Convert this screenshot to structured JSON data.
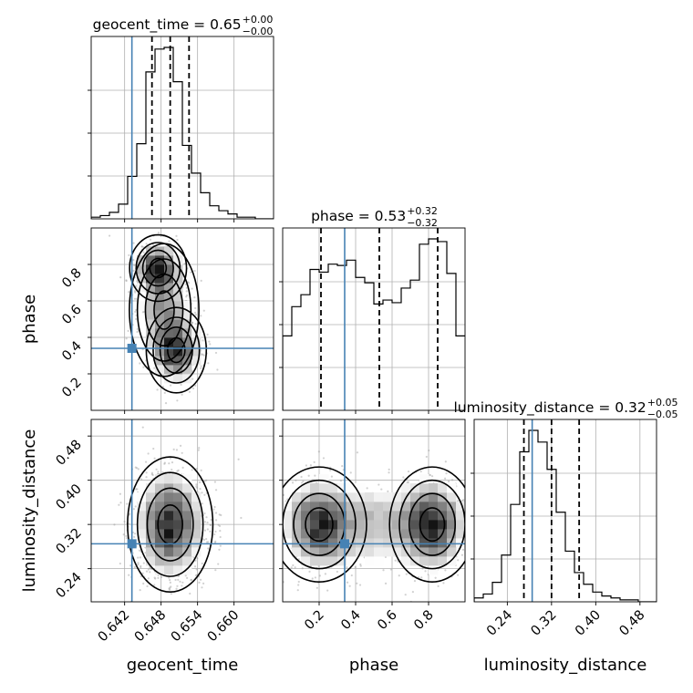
{
  "chart_data": {
    "type": "corner",
    "parameters": [
      {
        "name": "geocent_time",
        "title": {
          "main": "geocent_time = 0.65",
          "upper": "+0.00",
          "lower": "−0.00"
        },
        "median": 0.6495,
        "q16": 0.6465,
        "q84": 0.6526,
        "truth": 0.6432,
        "range": [
          0.6365,
          0.6665
        ],
        "ticks": [
          0.642,
          0.648,
          0.654,
          0.66
        ],
        "tick_labels": [
          "0.642",
          "0.648",
          "0.654",
          "0.660"
        ],
        "histogram": {
          "edges_start": 0.6365,
          "bin_width": 0.0015,
          "counts": [
            1,
            2,
            4,
            9,
            26,
            46,
            90,
            104,
            105,
            84,
            45,
            28,
            16,
            8,
            5,
            3,
            1,
            1,
            0,
            0
          ]
        }
      },
      {
        "name": "phase",
        "title": {
          "main": "phase = 0.53",
          "upper": "+0.32",
          "lower": "−0.32"
        },
        "median": 0.53,
        "q16": 0.21,
        "q84": 0.85,
        "truth": 0.34,
        "range": [
          0.0,
          1.0
        ],
        "ticks": [
          0.2,
          0.4,
          0.6,
          0.8
        ],
        "tick_labels": [
          "0.2",
          "0.4",
          "0.6",
          "0.8"
        ],
        "histogram": {
          "edges_start": 0.0,
          "bin_width": 0.05,
          "counts": [
            56,
            78,
            87,
            106,
            104,
            110,
            109,
            113,
            100,
            96,
            80,
            83,
            81,
            92,
            98,
            125,
            129,
            127,
            103,
            56
          ]
        }
      },
      {
        "name": "luminosity_distance",
        "title": {
          "main": "luminosity_distance = 0.32",
          "upper": "+0.05",
          "lower": "−0.05"
        },
        "median": 0.32,
        "q16": 0.27,
        "q84": 0.37,
        "truth": 0.285,
        "range": [
          0.18,
          0.51
        ],
        "ticks": [
          0.24,
          0.32,
          0.4,
          0.48
        ],
        "tick_labels": [
          "0.24",
          "0.32",
          "0.40",
          "0.48"
        ],
        "histogram": {
          "edges_start": 0.18,
          "bin_width": 0.0165,
          "counts": [
            2,
            4,
            10,
            24,
            50,
            77,
            88,
            82,
            68,
            46,
            26,
            15,
            9,
            5,
            3,
            2,
            1,
            1,
            0,
            0
          ]
        }
      }
    ],
    "pairs": [
      {
        "x": "geocent_time",
        "y": "phase",
        "y_ticks": [
          0.2,
          0.4,
          0.6,
          0.8
        ],
        "y_tick_labels": [
          "0.2",
          "0.4",
          "0.6",
          "0.8"
        ],
        "modes": [
          {
            "x": 0.6475,
            "y": 0.78,
            "sx": 0.0018,
            "sy": 0.07,
            "w": 1.0
          },
          {
            "x": 0.6505,
            "y": 0.33,
            "sx": 0.0019,
            "sy": 0.09,
            "w": 1.0
          },
          {
            "x": 0.6485,
            "y": 0.55,
            "sx": 0.0022,
            "sy": 0.14,
            "w": 0.55
          }
        ]
      },
      {
        "x": "geocent_time",
        "y": "luminosity_distance",
        "y_ticks": [
          0.24,
          0.32,
          0.4,
          0.48
        ],
        "y_tick_labels": [
          "0.24",
          "0.32",
          "0.40",
          "0.48"
        ],
        "modes": [
          {
            "x": 0.6495,
            "y": 0.32,
            "sx": 0.0027,
            "sy": 0.047,
            "w": 1.0
          }
        ]
      },
      {
        "x": "phase",
        "y": "luminosity_distance",
        "y_ticks": [
          0.24,
          0.32,
          0.4,
          0.48
        ],
        "y_tick_labels": [
          "0.24",
          "0.32",
          "0.40",
          "0.48"
        ],
        "modes": [
          {
            "x": 0.2,
            "y": 0.32,
            "sx": 0.1,
            "sy": 0.04,
            "w": 0.9
          },
          {
            "x": 0.82,
            "y": 0.32,
            "sx": 0.09,
            "sy": 0.04,
            "w": 1.0
          },
          {
            "x": 0.5,
            "y": 0.32,
            "sx": 0.18,
            "sy": 0.045,
            "w": 0.35
          }
        ]
      }
    ],
    "axis_labels": [
      "geocent_time",
      "phase",
      "luminosity_distance"
    ],
    "colors": {
      "truth": "#4682b4",
      "contour": "#000000",
      "grid": "#b0b0b0"
    },
    "grid": true,
    "quantile_lines": "dashed"
  }
}
